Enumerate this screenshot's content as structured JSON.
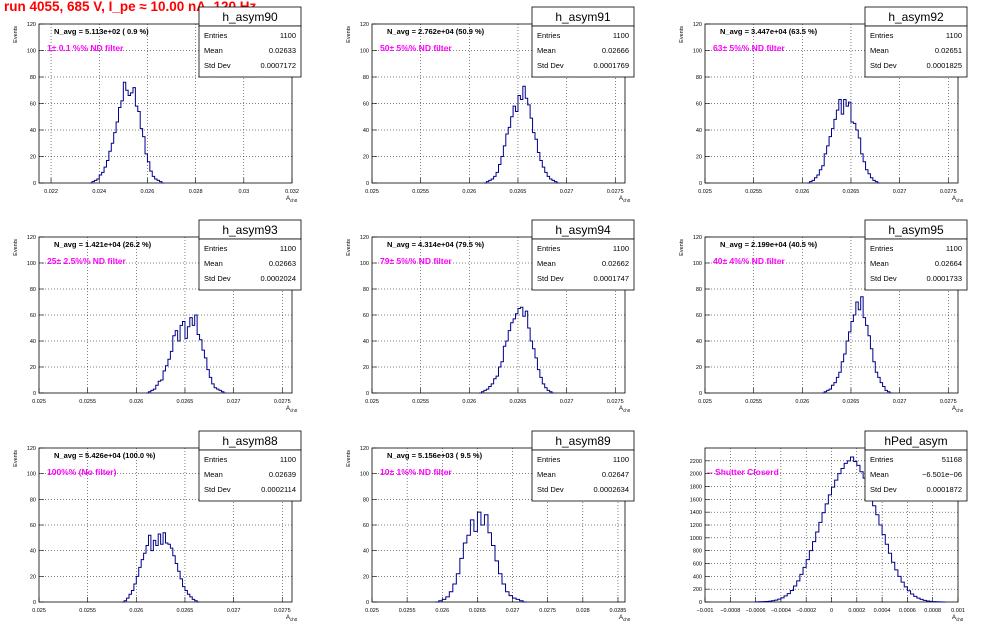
{
  "title": "run 4055,   685 V, I_pe ≈ 10.00 nA, 120 Hz",
  "colors": {
    "title": "#ff0000",
    "histogram": "#00008b",
    "annotation": "#ff00ff",
    "grid": "#000000"
  },
  "chart_data": [
    {
      "type": "histogram",
      "name": "h_asym90",
      "navg": "N_avg = 5.113e+02 ( 0.9 %)",
      "filter": "1± 0.1 %% ND filter",
      "stats": {
        "entries": "1100",
        "mean": "0.02633",
        "stddev": "0.0007172"
      },
      "xlabel": "A_{ch0}",
      "ylabel": "Events",
      "xlim": [
        0.0215,
        0.032
      ],
      "ylim": [
        0,
        120
      ],
      "xticks": [
        0.022,
        0.024,
        0.026,
        0.028,
        0.03,
        0.032
      ],
      "xticklabels": [
        "0.022",
        "0.024",
        "0.026",
        "0.028",
        "0.03",
        "0.032"
      ],
      "yticks": [
        0,
        20,
        40,
        60,
        80,
        100,
        120
      ],
      "yticklabels": [
        "0",
        "20",
        "40",
        "60",
        "80",
        "100",
        "120"
      ],
      "grid": true,
      "bins": {
        "x0": 0.0236,
        "width": 0.0001,
        "counts": [
          0,
          1,
          2,
          3,
          6,
          8,
          12,
          17,
          24,
          30,
          38,
          46,
          57,
          62,
          76,
          70,
          66,
          68,
          72,
          58,
          54,
          41,
          35,
          22,
          16,
          9,
          5,
          3,
          2,
          1,
          0
        ]
      }
    },
    {
      "type": "histogram",
      "name": "h_asym91",
      "navg": "N_avg = 2.762e+04 (50.9 %)",
      "filter": "50± 5%% ND filter",
      "stats": {
        "entries": "1100",
        "mean": "0.02666",
        "stddev": "0.0001769"
      },
      "xlabel": "A_{ch0}",
      "ylabel": "Events",
      "xlim": [
        0.025,
        0.0276
      ],
      "ylim": [
        0,
        120
      ],
      "xticks": [
        0.025,
        0.0255,
        0.026,
        0.0265,
        0.027,
        0.0275
      ],
      "xticklabels": [
        "0.025",
        "0.0255",
        "0.026",
        "0.0265",
        "0.027",
        "0.0275"
      ],
      "yticks": [
        0,
        20,
        40,
        60,
        80,
        100,
        120
      ],
      "yticklabels": [
        "0",
        "20",
        "40",
        "60",
        "80",
        "100",
        "120"
      ],
      "grid": true,
      "bins": {
        "x0": 0.02615,
        "width": 2.5e-05,
        "counts": [
          0,
          1,
          2,
          3,
          5,
          8,
          14,
          20,
          28,
          37,
          42,
          50,
          58,
          54,
          66,
          63,
          73,
          64,
          59,
          49,
          38,
          33,
          23,
          17,
          12,
          8,
          5,
          3,
          2,
          1,
          0
        ]
      }
    },
    {
      "type": "histogram",
      "name": "h_asym92",
      "navg": "N_avg = 3.447e+04 (63.5 %)",
      "filter": "63± 5%% ND filter",
      "stats": {
        "entries": "1100",
        "mean": "0.02651",
        "stddev": "0.0001825"
      },
      "xlabel": "A_{ch0}",
      "ylabel": "Events",
      "xlim": [
        0.025,
        0.0276
      ],
      "ylim": [
        0,
        120
      ],
      "xticks": [
        0.025,
        0.0255,
        0.026,
        0.0265,
        0.027,
        0.0275
      ],
      "xticklabels": [
        "0.025",
        "0.0255",
        "0.026",
        "0.0265",
        "0.027",
        "0.0275"
      ],
      "yticks": [
        0,
        20,
        40,
        60,
        80,
        100,
        120
      ],
      "yticklabels": [
        "0",
        "20",
        "40",
        "60",
        "80",
        "100",
        "120"
      ],
      "grid": true,
      "bins": {
        "x0": 0.02605,
        "width": 2.5e-05,
        "counts": [
          0,
          1,
          2,
          4,
          6,
          10,
          13,
          22,
          28,
          35,
          41,
          48,
          55,
          63,
          52,
          63,
          58,
          61,
          46,
          45,
          40,
          34,
          22,
          16,
          10,
          7,
          4,
          2,
          1,
          0
        ]
      }
    },
    {
      "type": "histogram",
      "name": "h_asym93",
      "navg": "N_avg = 1.421e+04 (26.2 %)",
      "filter": "25± 2.5%% ND filter",
      "stats": {
        "entries": "1100",
        "mean": "0.02663",
        "stddev": "0.0002024"
      },
      "xlabel": "A_{ch0}",
      "ylabel": "Events",
      "xlim": [
        0.025,
        0.0276
      ],
      "ylim": [
        0,
        120
      ],
      "xticks": [
        0.025,
        0.0255,
        0.026,
        0.0265,
        0.027,
        0.0275
      ],
      "xticklabels": [
        "0.025",
        "0.0255",
        "0.026",
        "0.0265",
        "0.027",
        "0.0275"
      ],
      "yticks": [
        0,
        20,
        40,
        60,
        80,
        100,
        120
      ],
      "yticklabels": [
        "0",
        "20",
        "40",
        "60",
        "80",
        "100",
        "120"
      ],
      "grid": true,
      "bins": {
        "x0": 0.0261,
        "width": 2.5e-05,
        "counts": [
          0,
          1,
          2,
          3,
          6,
          9,
          10,
          17,
          21,
          26,
          32,
          44,
          48,
          40,
          52,
          55,
          42,
          51,
          58,
          52,
          60,
          45,
          41,
          33,
          27,
          18,
          12,
          7,
          4,
          3,
          2,
          1,
          0
        ]
      }
    },
    {
      "type": "histogram",
      "name": "h_asym94",
      "navg": "N_avg = 4.314e+04 (79.5 %)",
      "filter": "79± 5%% ND filter",
      "stats": {
        "entries": "1100",
        "mean": "0.02662",
        "stddev": "0.0001747"
      },
      "xlabel": "A_{ch0}",
      "ylabel": "Events",
      "xlim": [
        0.025,
        0.0276
      ],
      "ylim": [
        0,
        120
      ],
      "xticks": [
        0.025,
        0.0255,
        0.026,
        0.0265,
        0.027,
        0.0275
      ],
      "xticklabels": [
        "0.025",
        "0.0255",
        "0.026",
        "0.0265",
        "0.027",
        "0.0275"
      ],
      "yticks": [
        0,
        20,
        40,
        60,
        80,
        100,
        120
      ],
      "yticklabels": [
        "0",
        "20",
        "40",
        "60",
        "80",
        "100",
        "120"
      ],
      "grid": true,
      "bins": {
        "x0": 0.0261,
        "width": 2.5e-05,
        "counts": [
          0,
          1,
          2,
          3,
          5,
          7,
          11,
          13,
          20,
          24,
          36,
          40,
          48,
          54,
          57,
          61,
          65,
          66,
          59,
          63,
          50,
          40,
          34,
          27,
          18,
          12,
          7,
          4,
          2,
          1,
          0
        ]
      }
    },
    {
      "type": "histogram",
      "name": "h_asym95",
      "navg": "N_avg = 2.199e+04 (40.5 %)",
      "filter": "40± 4%% ND filter",
      "stats": {
        "entries": "1100",
        "mean": "0.02664",
        "stddev": "0.0001733"
      },
      "xlabel": "A_{ch0}",
      "ylabel": "Events",
      "xlim": [
        0.025,
        0.0276
      ],
      "ylim": [
        0,
        120
      ],
      "xticks": [
        0.025,
        0.0255,
        0.026,
        0.0265,
        0.027,
        0.0275
      ],
      "xticklabels": [
        "0.025",
        "0.0255",
        "0.026",
        "0.0265",
        "0.027",
        "0.0275"
      ],
      "yticks": [
        0,
        20,
        40,
        60,
        80,
        100,
        120
      ],
      "yticklabels": [
        "0",
        "20",
        "40",
        "60",
        "80",
        "100",
        "120"
      ],
      "grid": true,
      "bins": {
        "x0": 0.0262,
        "width": 2.5e-05,
        "counts": [
          0,
          1,
          2,
          3,
          6,
          8,
          12,
          16,
          24,
          30,
          40,
          47,
          55,
          60,
          70,
          64,
          74,
          58,
          52,
          44,
          34,
          24,
          16,
          12,
          8,
          5,
          2,
          1,
          0
        ]
      }
    },
    {
      "type": "histogram",
      "name": "h_asym88",
      "navg": "N_avg = 5.426e+04 (100.0 %)",
      "filter": "100%% (No filter)",
      "stats": {
        "entries": "1100",
        "mean": "0.02639",
        "stddev": "0.0002114"
      },
      "xlabel": "A_{ch0}",
      "ylabel": "Events",
      "xlim": [
        0.025,
        0.0276
      ],
      "ylim": [
        0,
        120
      ],
      "xticks": [
        0.025,
        0.0255,
        0.026,
        0.0265,
        0.027,
        0.0275
      ],
      "xticklabels": [
        "0.025",
        "0.0255",
        "0.026",
        "0.0265",
        "0.027",
        "0.0275"
      ],
      "yticks": [
        0,
        20,
        40,
        60,
        80,
        100,
        120
      ],
      "yticklabels": [
        "0",
        "20",
        "40",
        "60",
        "80",
        "100",
        "120"
      ],
      "grid": true,
      "bins": {
        "x0": 0.02585,
        "width": 2.5e-05,
        "counts": [
          0,
          1,
          3,
          6,
          9,
          14,
          20,
          27,
          33,
          38,
          44,
          52,
          40,
          48,
          44,
          53,
          45,
          54,
          46,
          45,
          42,
          36,
          30,
          24,
          18,
          12,
          9,
          6,
          4,
          2,
          1,
          0
        ]
      }
    },
    {
      "type": "histogram",
      "name": "h_asym89",
      "navg": "N_avg = 5.156e+03 ( 9.5 %)",
      "filter": "10± 1%% ND filter",
      "stats": {
        "entries": "1100",
        "mean": "0.02647",
        "stddev": "0.0002634"
      },
      "xlabel": "A_{ch0}",
      "ylabel": "Events",
      "xlim": [
        0.025,
        0.0286
      ],
      "ylim": [
        0,
        120
      ],
      "xticks": [
        0.025,
        0.0255,
        0.026,
        0.0265,
        0.027,
        0.0275,
        0.028,
        0.0285
      ],
      "xticklabels": [
        "0.025",
        "0.0255",
        "0.026",
        "0.0265",
        "0.027",
        "0.0275",
        "0.028",
        "0.0285"
      ],
      "yticks": [
        0,
        20,
        40,
        60,
        80,
        100,
        120
      ],
      "yticklabels": [
        "0",
        "20",
        "40",
        "60",
        "80",
        "100",
        "120"
      ],
      "grid": true,
      "bins": {
        "x0": 0.0259,
        "width": 5e-05,
        "counts": [
          0,
          1,
          2,
          4,
          8,
          14,
          22,
          34,
          46,
          52,
          64,
          55,
          70,
          60,
          68,
          54,
          44,
          32,
          22,
          14,
          8,
          5,
          3,
          2,
          1,
          0
        ]
      }
    },
    {
      "type": "histogram",
      "name": "hPed_asym",
      "navg": "",
      "filter": "-- Shutter Closerd",
      "stats": {
        "entries": "51168",
        "mean": "−6.501e−06",
        "stddev": "0.0001872"
      },
      "xlabel": "A_{ch0}",
      "ylabel": "",
      "xlim": [
        -0.001,
        0.001
      ],
      "ylim": [
        0,
        2400
      ],
      "xticks": [
        -0.001,
        -0.0008,
        -0.0006,
        -0.0004,
        -0.0002,
        0,
        0.0002,
        0.0004,
        0.0006,
        0.0008,
        0.001
      ],
      "xticklabels": [
        "−0.001",
        "−0.0008",
        "−0.0006",
        "−0.0004",
        "−0.0002",
        "0",
        "0.0002",
        "0.0004",
        "0.0006",
        "0.0008",
        "0.001"
      ],
      "yticks": [
        0,
        200,
        400,
        600,
        800,
        1000,
        1200,
        1400,
        1600,
        1800,
        2000,
        2200
      ],
      "yticklabels": [
        "0",
        "200",
        "400",
        "600",
        "800",
        "1000",
        "1200",
        "1400",
        "1600",
        "1800",
        "2000",
        "2200"
      ],
      "grid": true,
      "bins": {
        "x0": -0.0006,
        "width": 2.5e-05,
        "counts": [
          2,
          3,
          5,
          8,
          12,
          20,
          30,
          45,
          65,
          95,
          130,
          180,
          250,
          330,
          430,
          540,
          660,
          800,
          940,
          1090,
          1240,
          1390,
          1530,
          1670,
          1790,
          1900,
          2000,
          2080,
          2160,
          2200,
          2260,
          2190,
          2130,
          2030,
          1930,
          1790,
          1650,
          1500,
          1360,
          1200,
          1050,
          900,
          760,
          620,
          500,
          400,
          310,
          235,
          175,
          125,
          88,
          60,
          40,
          26,
          16,
          10,
          6,
          4,
          2,
          1
        ]
      }
    }
  ]
}
